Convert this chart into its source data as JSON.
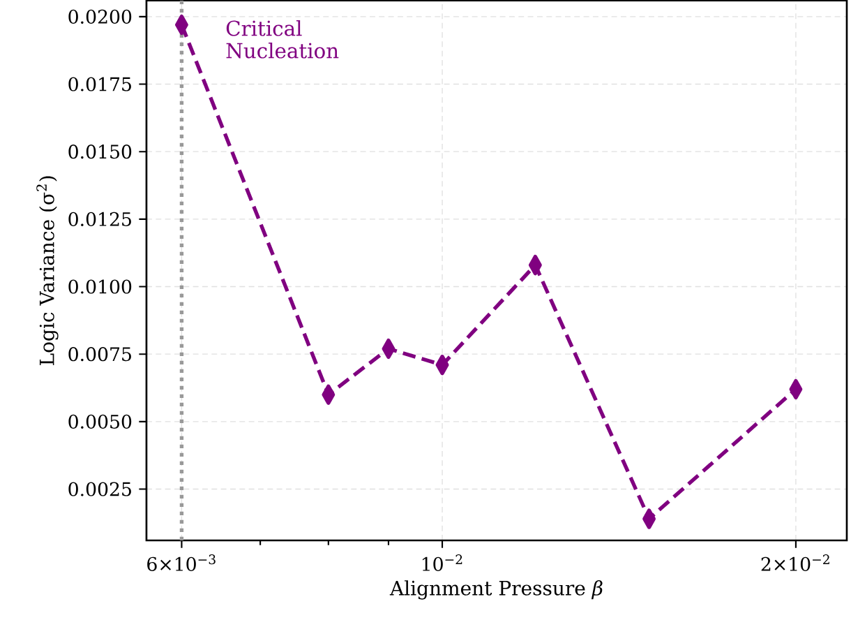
{
  "chart_data": {
    "type": "line",
    "xlabel": "Alignment Pressure *β*",
    "ylabel": "Logic Variance (σ$^{2}$)",
    "x": [
      0.006,
      0.008,
      0.009,
      0.01,
      0.012,
      0.015,
      0.02
    ],
    "series": [
      {
        "color": "#800080",
        "values": [
          0.0197,
          0.006,
          0.0077,
          0.0071,
          0.0108,
          0.0014,
          0.0062
        ]
      }
    ],
    "log": "x",
    "xlim": [
      0.0056,
      0.0221
    ],
    "ylim": [
      0.0006,
      0.0206
    ],
    "xticks": [
      {
        "value": 0.006,
        "label": "6×10$^{−3}$"
      },
      {
        "value": 0.007,
        "label": null
      },
      {
        "value": 0.008,
        "label": null
      },
      {
        "value": 0.009,
        "label": null
      },
      {
        "value": 0.01,
        "label": "10$^{−2}$"
      },
      {
        "value": 0.02,
        "label": "2×10$^{−2}$"
      }
    ],
    "yticks": [
      {
        "value": 0.0025,
        "label": "0.0025"
      },
      {
        "value": 0.005,
        "label": "0.0050"
      },
      {
        "value": 0.0075,
        "label": "0.0075"
      },
      {
        "value": 0.01,
        "label": "0.0100"
      },
      {
        "value": 0.0125,
        "label": "0.0125"
      },
      {
        "value": 0.015,
        "label": "0.0150"
      },
      {
        "value": 0.0175,
        "label": "0.0175"
      },
      {
        "value": 0.02,
        "label": "0.0200"
      }
    ],
    "grid": true,
    "marker": "diamond",
    "line_style": "dashed",
    "ref_lines": [
      {
        "axis": "x",
        "value": 0.006,
        "color": "#999999",
        "line_style": "dotted"
      }
    ],
    "annotations": [
      {
        "text": "Critical Nucleation",
        "x": 0.006,
        "y": 0.0197
      }
    ]
  }
}
